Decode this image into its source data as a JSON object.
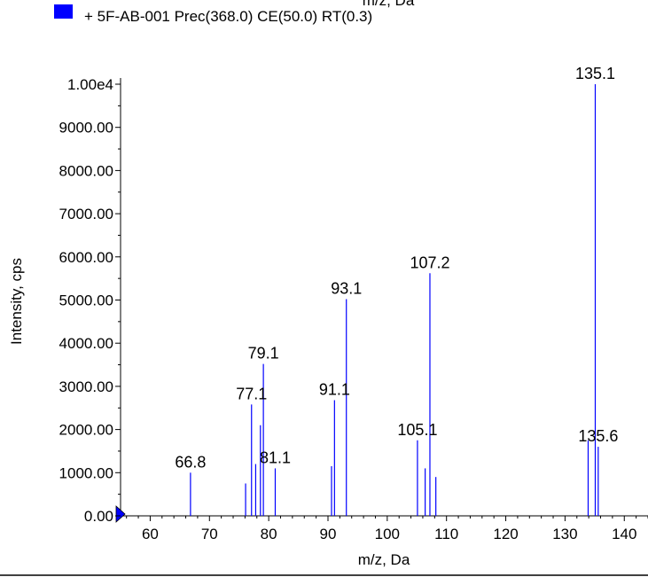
{
  "chart_data": {
    "type": "bar",
    "top_cut_text": "m/z, Da",
    "legend": {
      "label": "+ 5F-AB-001 Prec(368.0) CE(50.0) RT(0.3)",
      "color": "#0000ff"
    },
    "xlabel": "m/z, Da",
    "ylabel": "Intensity, cps",
    "xlim": [
      55,
      144
    ],
    "ylim": [
      0,
      10000
    ],
    "x_ticks": [
      "60",
      "70",
      "80",
      "90",
      "100",
      "110",
      "120",
      "130",
      "140"
    ],
    "y_ticks": [
      "0.00",
      "1000.00",
      "2000.00",
      "3000.00",
      "4000.00",
      "5000.00",
      "6000.00",
      "7000.00",
      "8000.00",
      "9000.00",
      "1.00e4"
    ],
    "bar_color": "#0000ff",
    "peaks": [
      {
        "x": 66.8,
        "y": 1000
      },
      {
        "x": 76.1,
        "y": 750
      },
      {
        "x": 77.1,
        "y": 2580
      },
      {
        "x": 77.8,
        "y": 1200
      },
      {
        "x": 78.6,
        "y": 2100
      },
      {
        "x": 79.1,
        "y": 3520
      },
      {
        "x": 81.1,
        "y": 1100
      },
      {
        "x": 90.6,
        "y": 1150
      },
      {
        "x": 91.1,
        "y": 2680
      },
      {
        "x": 93.1,
        "y": 5020
      },
      {
        "x": 105.1,
        "y": 1750
      },
      {
        "x": 106.4,
        "y": 1100
      },
      {
        "x": 107.2,
        "y": 5620
      },
      {
        "x": 108.2,
        "y": 900
      },
      {
        "x": 133.9,
        "y": 1750
      },
      {
        "x": 135.1,
        "y": 10000
      },
      {
        "x": 135.6,
        "y": 1600
      }
    ],
    "peak_labels": [
      "66.8",
      "77.1",
      "79.1",
      "81.1",
      "91.1",
      "93.1",
      "105.1",
      "107.2",
      "135.1",
      "135.6"
    ]
  }
}
